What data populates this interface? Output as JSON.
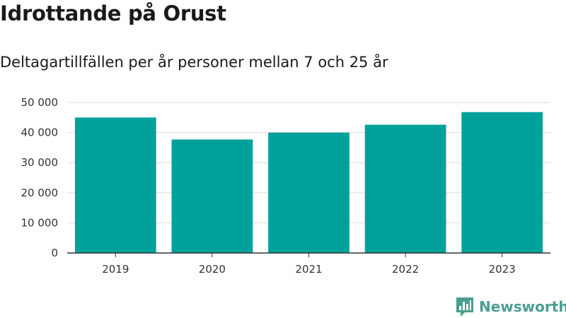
{
  "header": {
    "title": "Idrottande på Orust",
    "subtitle": "Deltagartillfällen per år personer mellan 7 och 25 år"
  },
  "brand": {
    "name": "Newsworthy",
    "logo_icon": "newsworthy-logo-icon",
    "color": "#4a9e92"
  },
  "chart_data": {
    "type": "bar",
    "title": "",
    "xlabel": "",
    "ylabel": "",
    "categories": [
      "2019",
      "2020",
      "2021",
      "2022",
      "2023"
    ],
    "values": [
      45000,
      37700,
      40000,
      42600,
      46800
    ],
    "ylim": [
      0,
      50000
    ],
    "yticks": [
      0,
      10000,
      20000,
      30000,
      40000,
      50000
    ],
    "ytick_labels": [
      "0",
      "10 000",
      "20 000",
      "30 000",
      "40 000",
      "50 000"
    ],
    "grid": true,
    "legend": "none",
    "bar_color": "#00a19a",
    "grid_color": "#dddddd",
    "axis_color": "#333333"
  }
}
